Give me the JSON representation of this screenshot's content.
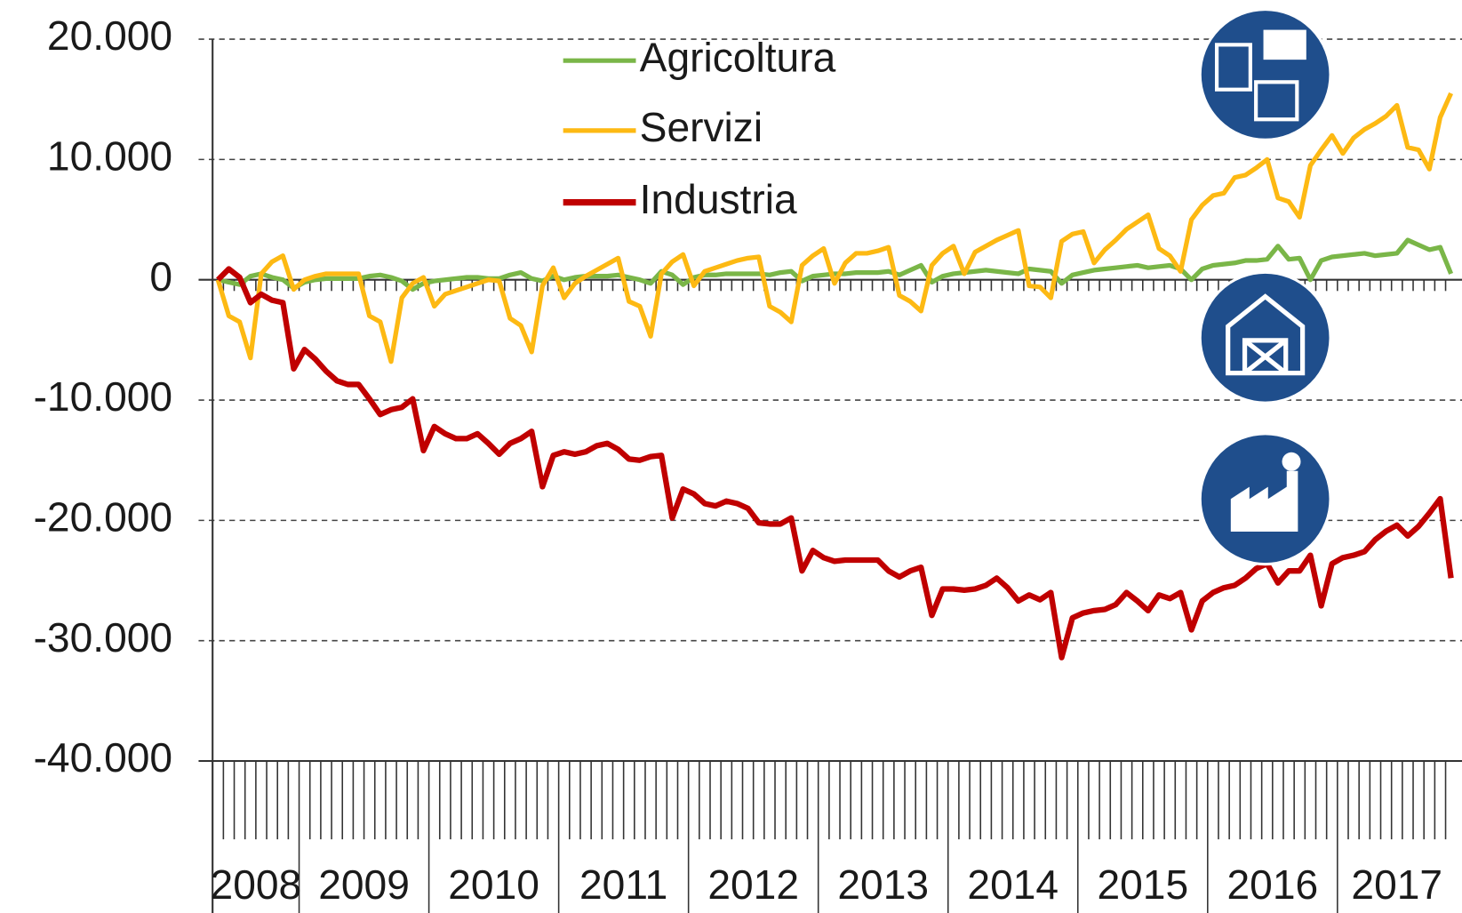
{
  "chart_data": {
    "type": "line",
    "categories": [
      "2008",
      null,
      null,
      null,
      null,
      null,
      null,
      null,
      "2009",
      null,
      null,
      null,
      null,
      null,
      null,
      null,
      null,
      null,
      null,
      null,
      "2010",
      null,
      null,
      null,
      null,
      null,
      null,
      null,
      null,
      null,
      null,
      null,
      "2011",
      null,
      null,
      null,
      null,
      null,
      null,
      null,
      null,
      null,
      null,
      null,
      "2012",
      null,
      null,
      null,
      null,
      null,
      null,
      null,
      null,
      null,
      null,
      null,
      "2013",
      null,
      null,
      null,
      null,
      null,
      null,
      null,
      null,
      null,
      null,
      null,
      "2014",
      null,
      null,
      null,
      null,
      null,
      null,
      null,
      null,
      null,
      null,
      null,
      "2015",
      null,
      null,
      null,
      null,
      null,
      null,
      null,
      null,
      null,
      null,
      null,
      "2016",
      null,
      null,
      null,
      null,
      null,
      null,
      null,
      null,
      null,
      null,
      null,
      "2017",
      null,
      null,
      null,
      null,
      null,
      null,
      null,
      null,
      null,
      null
    ],
    "series": [
      {
        "name": "Agricoltura",
        "color": "#7ab648",
        "values": [
          0,
          -200,
          -400,
          300,
          500,
          200,
          0,
          -700,
          -200,
          0,
          100,
          100,
          100,
          100,
          300,
          400,
          200,
          -100,
          -800,
          -300,
          -100,
          0,
          100,
          200,
          200,
          100,
          100,
          400,
          600,
          100,
          -100,
          300,
          0,
          200,
          300,
          300,
          300,
          400,
          200,
          0,
          -300,
          700,
          400,
          -400,
          200,
          400,
          400,
          500,
          500,
          500,
          500,
          400,
          600,
          700,
          -100,
          300,
          400,
          500,
          500,
          600,
          600,
          600,
          700,
          400,
          800,
          1200,
          -200,
          300,
          500,
          600,
          700,
          800,
          700,
          600,
          500,
          900,
          800,
          700,
          -300,
          400,
          600,
          800,
          900,
          1000,
          1100,
          1200,
          1000,
          1100,
          1200,
          900,
          0,
          900,
          1200,
          1300,
          1400,
          1600,
          1600,
          1700,
          2800,
          1700,
          1800,
          0,
          1600,
          1900,
          2000,
          2100,
          2200,
          2000,
          2100,
          2200,
          3300,
          2900,
          2500,
          2700,
          500
        ]
      },
      {
        "name": "Servizi",
        "color": "#fdb913",
        "values": [
          0,
          -3000,
          -3500,
          -6500,
          500,
          1500,
          2000,
          -800,
          0,
          300,
          500,
          500,
          500,
          500,
          -3000,
          -3500,
          -6800,
          -1500,
          -300,
          200,
          -2200,
          -1200,
          -900,
          -600,
          -300,
          0,
          -100,
          -3200,
          -3800,
          -6000,
          -500,
          1000,
          -1500,
          -300,
          300,
          800,
          1300,
          1800,
          -1800,
          -2200,
          -4700,
          500,
          1500,
          2100,
          -500,
          700,
          1000,
          1300,
          1600,
          1800,
          1900,
          -2200,
          -2700,
          -3500,
          1200,
          2000,
          2600,
          -300,
          1400,
          2200,
          2200,
          2400,
          2700,
          -1300,
          -1800,
          -2600,
          1200,
          2200,
          2800,
          500,
          2300,
          2800,
          3300,
          3700,
          4100,
          -500,
          -600,
          -1500,
          3200,
          3800,
          4000,
          1400,
          2500,
          3300,
          4200,
          4800,
          5400,
          2600,
          2000,
          700,
          5000,
          6200,
          7000,
          7200,
          8500,
          8700,
          9300,
          10000,
          6800,
          6500,
          5200,
          9500,
          10800,
          12000,
          10500,
          11800,
          12500,
          13000,
          13600,
          14500,
          11000,
          10800,
          9200,
          13500,
          15500
        ]
      },
      {
        "name": "Industria",
        "color": "#c00000",
        "values": [
          0,
          900,
          200,
          -1900,
          -1200,
          -1700,
          -1900,
          -7400,
          -5800,
          -6600,
          -7600,
          -8400,
          -8700,
          -8700,
          -9900,
          -11200,
          -10800,
          -10600,
          -9900,
          -14200,
          -12200,
          -12800,
          -13200,
          -13200,
          -12800,
          -13600,
          -14500,
          -13600,
          -13200,
          -12600,
          -17200,
          -14600,
          -14300,
          -14500,
          -14300,
          -13800,
          -13600,
          -14100,
          -14900,
          -15000,
          -14700,
          -14600,
          -19800,
          -17400,
          -17800,
          -18600,
          -18800,
          -18400,
          -18600,
          -19000,
          -20200,
          -20300,
          -20300,
          -19800,
          -24200,
          -22500,
          -23100,
          -23400,
          -23300,
          -23300,
          -23300,
          -23300,
          -24200,
          -24700,
          -24200,
          -23900,
          -27900,
          -25700,
          -25700,
          -25800,
          -25700,
          -25400,
          -24800,
          -25600,
          -26700,
          -26200,
          -26600,
          -26000,
          -31400,
          -28100,
          -27700,
          -27500,
          -27400,
          -27000,
          -26000,
          -26700,
          -27500,
          -26200,
          -26500,
          -26000,
          -29100,
          -26700,
          -26000,
          -25600,
          -25400,
          -24800,
          -24000,
          -23600,
          -25200,
          -24200,
          -24200,
          -22900,
          -27100,
          -23600,
          -23100,
          -22900,
          -22600,
          -21600,
          -20900,
          -20400,
          -21300,
          -20500,
          -19400,
          -18200,
          -24800
        ]
      }
    ],
    "ylim": [
      -40000,
      20000
    ],
    "yticks": [
      {
        "value": -40000,
        "label": "-40.000"
      },
      {
        "value": -30000,
        "label": "-30.000"
      },
      {
        "value": -20000,
        "label": "-20.000"
      },
      {
        "value": -10000,
        "label": "-10.000"
      },
      0,
      {
        "value": 10000,
        "label": "10.000"
      },
      {
        "value": 20000,
        "label": "20.000"
      }
    ],
    "grid": true,
    "legend": "top"
  }
}
